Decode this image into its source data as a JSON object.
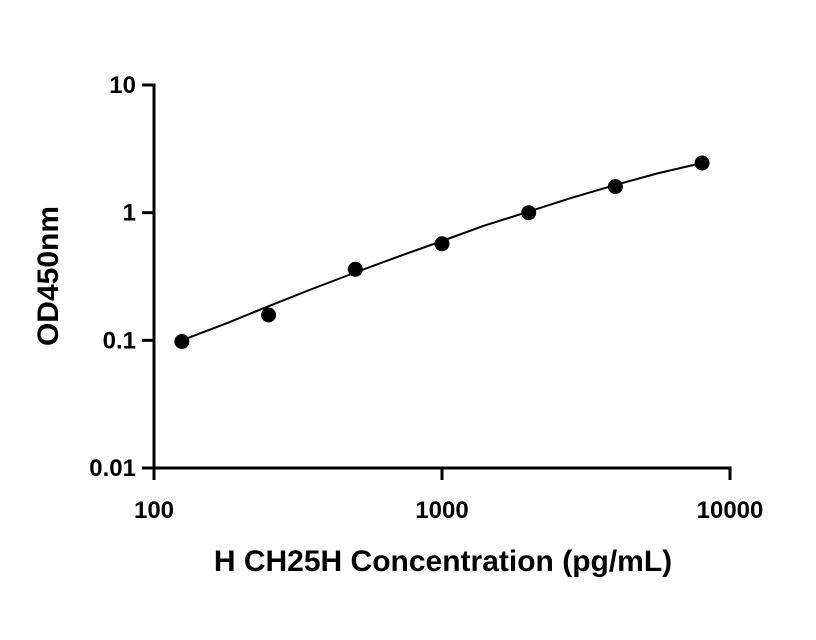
{
  "chart_data": {
    "type": "scatter",
    "title": "",
    "xlabel": "H CH25H Concentration (pg/mL)",
    "ylabel": "OD450nm",
    "x_scale": "log",
    "y_scale": "log",
    "xlim": [
      100,
      10000
    ],
    "ylim": [
      0.01,
      10
    ],
    "x_ticks": [
      100,
      1000,
      10000
    ],
    "x_tick_labels": [
      "100",
      "1000",
      "10000"
    ],
    "y_ticks": [
      0.01,
      0.1,
      1,
      10
    ],
    "y_tick_labels": [
      "0.01",
      "0.1",
      "1",
      "10"
    ],
    "grid": false,
    "legend": "none",
    "point_color": "#000000",
    "line_color": "#000000",
    "points": {
      "x": [
        125,
        250,
        500,
        1000,
        2000,
        4000,
        8000
      ],
      "y": [
        0.098,
        0.158,
        0.36,
        0.57,
        1.0,
        1.6,
        2.45
      ]
    },
    "fit_curve": {
      "x": [
        125,
        180,
        250,
        350,
        500,
        700,
        1000,
        1400,
        2000,
        2800,
        4000,
        5600,
        8000
      ],
      "y": [
        0.1,
        0.137,
        0.185,
        0.25,
        0.34,
        0.45,
        0.6,
        0.79,
        1.02,
        1.3,
        1.65,
        2.03,
        2.45
      ]
    }
  }
}
